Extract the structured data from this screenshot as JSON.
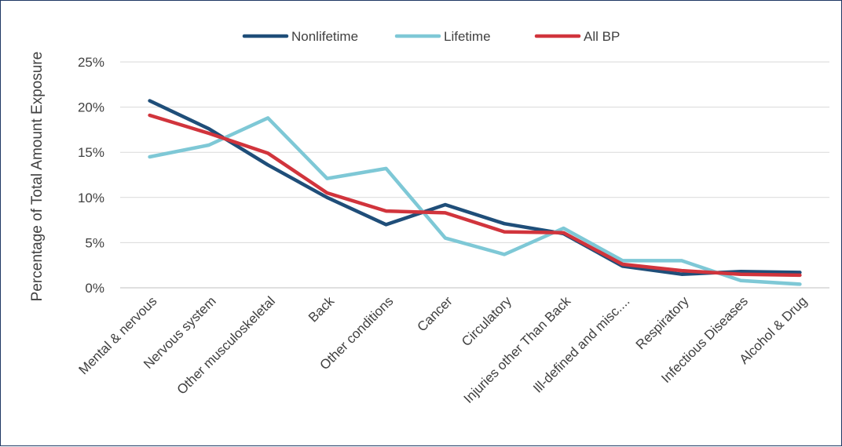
{
  "chart_data": {
    "type": "line",
    "title": "",
    "xlabel": "",
    "ylabel": "Percentage of Total Amount Exposure",
    "ylim": [
      0,
      25
    ],
    "yticks": [
      "0%",
      "5%",
      "10%",
      "15%",
      "20%",
      "25%"
    ],
    "yticks_values": [
      0,
      5,
      10,
      15,
      20,
      25
    ],
    "grid": true,
    "legend_position": "top-center",
    "categories": [
      "Mental & nervous",
      "Nervous system",
      "Other musculoskeletal",
      "Back",
      "Other conditions",
      "Cancer",
      "Circulatory",
      "Injuries other Than Back",
      "Ill-defined and misc....",
      "Respiratory",
      "Infectious Diseases",
      "Alcohol & Drug"
    ],
    "series": [
      {
        "name": "Nonlifetime",
        "color": "#1f4e79",
        "values": [
          20.7,
          17.6,
          13.6,
          10.0,
          7.0,
          9.2,
          7.1,
          6.0,
          2.4,
          1.5,
          1.8,
          1.7
        ]
      },
      {
        "name": "Lifetime",
        "color": "#7ec8d6",
        "values": [
          14.5,
          15.8,
          18.8,
          12.1,
          13.2,
          5.5,
          3.7,
          6.6,
          3.0,
          3.0,
          0.8,
          0.4
        ]
      },
      {
        "name": "All BP",
        "color": "#d1343c",
        "values": [
          19.1,
          17.1,
          14.9,
          10.5,
          8.5,
          8.3,
          6.2,
          6.1,
          2.6,
          1.9,
          1.5,
          1.4
        ]
      }
    ]
  }
}
